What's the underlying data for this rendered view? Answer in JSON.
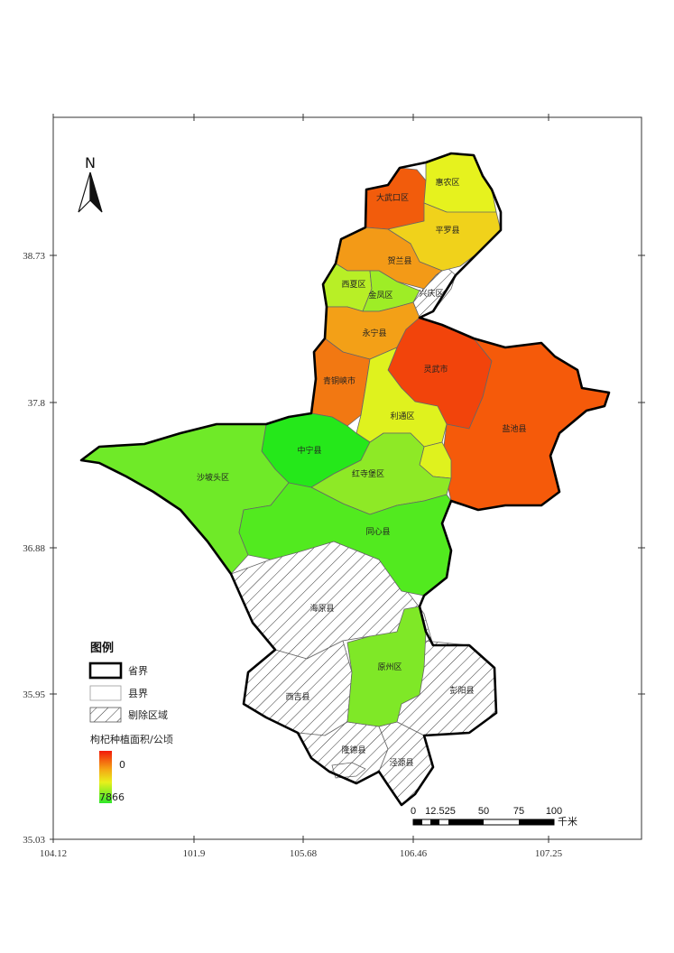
{
  "north_arrow": {
    "label": "N",
    "icon": "north-arrow-icon"
  },
  "axes": {
    "x_ticks": [
      "104.12",
      "101.9",
      "105.68",
      "106.46",
      "107.25"
    ],
    "y_ticks": [
      "38.73",
      "37.8",
      "36.88",
      "35.95",
      "35.03"
    ]
  },
  "regions": [
    {
      "name": "大武口区",
      "color": "#f25c0c"
    },
    {
      "name": "惠农区",
      "color": "#e6f21e"
    },
    {
      "name": "平罗县",
      "color": "#f0d21b"
    },
    {
      "name": "贺兰县",
      "color": "#f39a17"
    },
    {
      "name": "西夏区",
      "color": "#b8ef26"
    },
    {
      "name": "金凤区",
      "color": "#9eed26"
    },
    {
      "name": "兴庆区",
      "color": "excluded"
    },
    {
      "name": "永宁县",
      "color": "#f3a017"
    },
    {
      "name": "灵武市",
      "color": "#f2440b"
    },
    {
      "name": "青铜峡市",
      "color": "#f27812"
    },
    {
      "name": "利通区",
      "color": "#dff21e"
    },
    {
      "name": "盐池县",
      "color": "#f55a0a"
    },
    {
      "name": "中宁县",
      "color": "#25e81a"
    },
    {
      "name": "沙坡头区",
      "color": "#6fea28"
    },
    {
      "name": "红寺堡区",
      "color": "#8ee926"
    },
    {
      "name": "同心县",
      "color": "#52ea1f"
    },
    {
      "name": "海原县",
      "color": "excluded"
    },
    {
      "name": "原州区",
      "color": "#7fe827"
    },
    {
      "name": "西吉县",
      "color": "excluded"
    },
    {
      "name": "彭阳县",
      "color": "excluded"
    },
    {
      "name": "隆德县",
      "color": "excluded"
    },
    {
      "name": "泾源县",
      "color": "excluded"
    }
  ],
  "legend": {
    "title": "图例",
    "province_boundary": "省界",
    "county_boundary": "县界",
    "excluded_area": "剔除区域",
    "ramp_title": "枸杞种植面积/公顷",
    "ramp_high": "0",
    "ramp_low": "7866",
    "ramp_colors": [
      "#f21a0a",
      "#f5a514",
      "#e8f01c",
      "#2fe82a"
    ]
  },
  "scale_bar": {
    "ticks": [
      "0",
      "12.525",
      "50",
      "75",
      "100"
    ],
    "unit": "千米"
  }
}
